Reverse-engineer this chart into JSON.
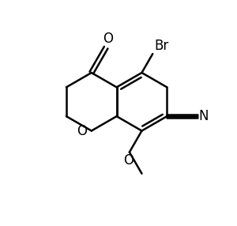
{
  "background_color": "#ffffff",
  "line_color": "#000000",
  "line_width": 1.8,
  "font_size_atom": 12,
  "figsize": [
    3.0,
    2.86
  ],
  "dpi": 100,
  "xlim": [
    -0.1,
    1.1
  ],
  "ylim": [
    -0.15,
    1.05
  ]
}
